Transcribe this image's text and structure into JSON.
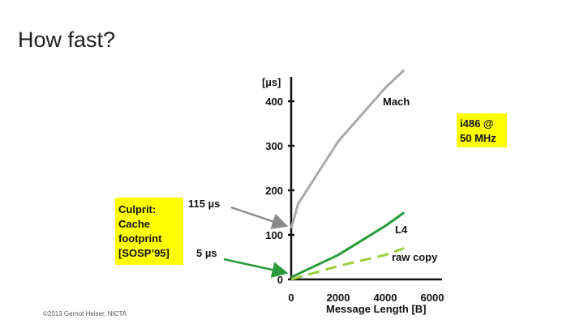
{
  "slide": {
    "title": "How fast?",
    "footer": "©2013 Gernot Heiser, NICTA"
  },
  "chart_data": {
    "type": "line",
    "y_unit_label": "[µs]",
    "xlabel": "Message Length [B]",
    "ylabel": "",
    "xlim": [
      0,
      6000
    ],
    "ylim": [
      0,
      480
    ],
    "x_ticks": [
      0,
      2000,
      4000,
      6000
    ],
    "y_ticks": [
      0,
      100,
      200,
      300,
      400
    ],
    "grid": false,
    "series": [
      {
        "name": "Mach",
        "color": "#a9a9a9",
        "x": [
          0,
          300,
          2000,
          3500,
          4000,
          4800
        ],
        "y": [
          115,
          170,
          310,
          400,
          430,
          470
        ]
      },
      {
        "name": "L4",
        "color": "#2a9a3a",
        "x": [
          0,
          2000,
          4000,
          4800
        ],
        "y": [
          5,
          55,
          120,
          150
        ]
      },
      {
        "name": "raw copy",
        "color": "#9fcc3b",
        "dashed": true,
        "x": [
          0,
          2000,
          4000,
          4800
        ],
        "y": [
          0,
          30,
          55,
          70
        ]
      }
    ],
    "annotations": {
      "info_box": [
        "i486 @",
        "50 MHz"
      ],
      "culprit_box": [
        "Culprit:",
        "Cache",
        "footprint",
        "[SOSP’95]"
      ],
      "mach_startup": "115 µs",
      "l4_startup": "5 µs"
    },
    "colors": {
      "highlight_box": "#ffff00",
      "axis": "#111111"
    }
  }
}
